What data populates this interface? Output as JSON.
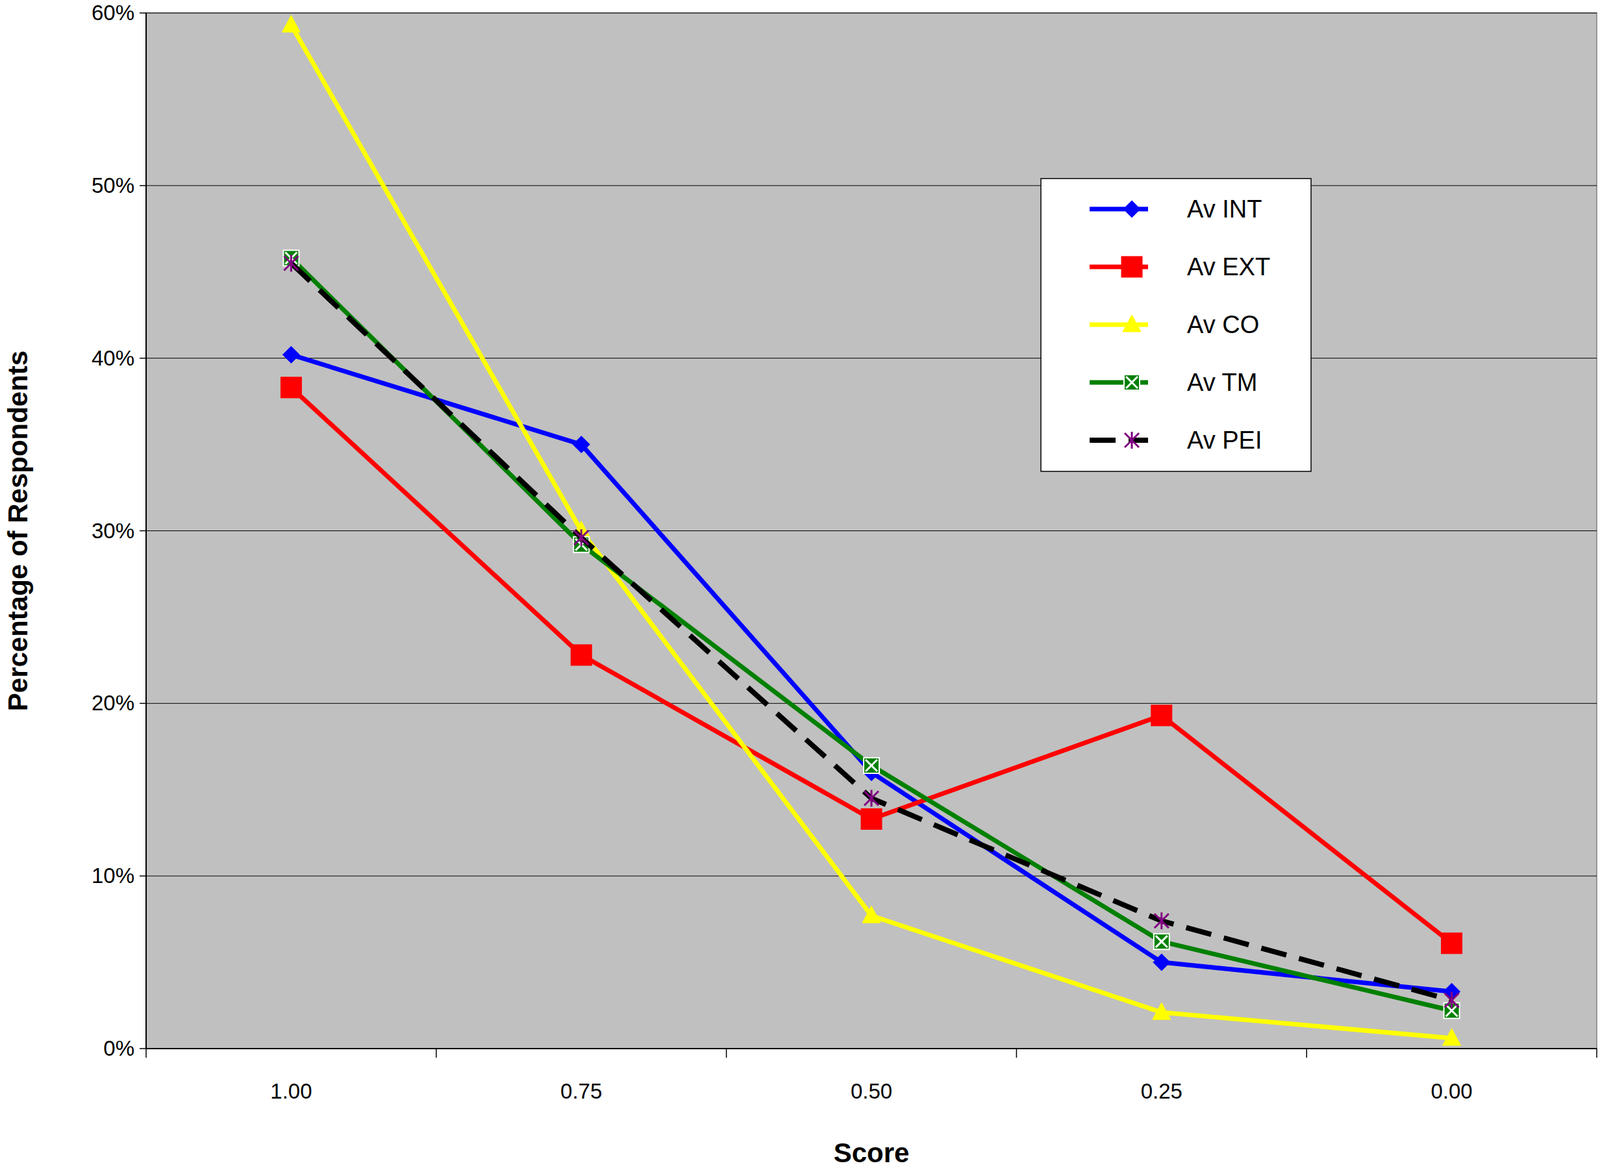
{
  "chart_data": {
    "type": "line",
    "x_label": "Score",
    "y_label": "Percentage of Respondents",
    "categories": [
      "1.00",
      "0.75",
      "0.50",
      "0.25",
      "0.00"
    ],
    "series": [
      {
        "name": "Av INT",
        "color": "#0000FF",
        "marker": "diamond",
        "line_style": "solid",
        "values": [
          40.2,
          35.0,
          16.0,
          5.0,
          3.3
        ]
      },
      {
        "name": "Av EXT",
        "color": "#FF0000",
        "marker": "square",
        "line_style": "solid",
        "values": [
          38.3,
          22.8,
          13.3,
          19.3,
          6.1
        ]
      },
      {
        "name": "Av CO",
        "color": "#FFFF00",
        "marker": "triangle",
        "line_style": "solid",
        "values": [
          59.3,
          30.0,
          7.7,
          2.1,
          0.6
        ]
      },
      {
        "name": "Av TM",
        "color": "#008000",
        "marker": "square-x",
        "line_style": "solid",
        "values": [
          45.8,
          29.2,
          16.4,
          6.2,
          2.2
        ]
      },
      {
        "name": "Av PEI",
        "color": "#000000",
        "marker": "star",
        "line_style": "dashed",
        "values": [
          45.5,
          29.6,
          14.5,
          7.4,
          2.8
        ]
      }
    ],
    "ylim": [
      0,
      60
    ],
    "yticks": [
      {
        "value": 0,
        "label": "0%"
      },
      {
        "value": 10,
        "label": "10%"
      },
      {
        "value": 20,
        "label": "20%"
      },
      {
        "value": 30,
        "label": "30%"
      },
      {
        "value": 40,
        "label": "40%"
      },
      {
        "value": 50,
        "label": "50%"
      },
      {
        "value": 60,
        "label": "60%"
      }
    ],
    "grid": true,
    "legend": "right"
  }
}
